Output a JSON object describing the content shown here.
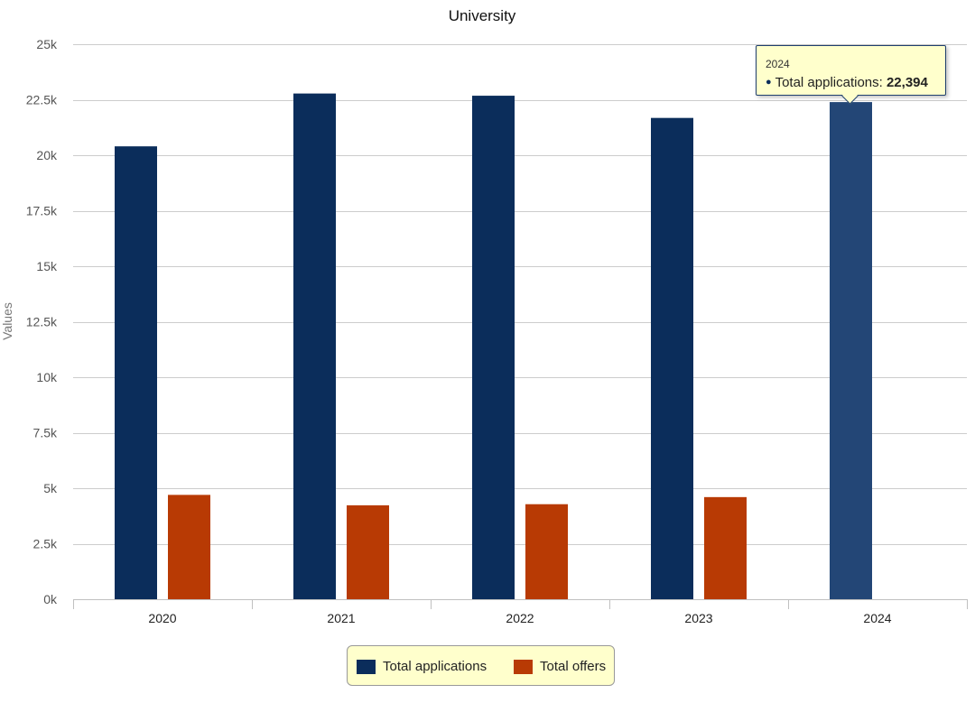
{
  "chart_data": {
    "type": "bar",
    "title": "University",
    "xlabel": "",
    "ylabel": "Values",
    "categories": [
      "2020",
      "2021",
      "2022",
      "2023",
      "2024"
    ],
    "ylim": [
      0,
      25000
    ],
    "yticks": [
      0,
      2500,
      5000,
      7500,
      10000,
      12500,
      15000,
      17500,
      20000,
      22500,
      25000
    ],
    "ytick_labels": [
      "0k",
      "2.5k",
      "5k",
      "7.5k",
      "10k",
      "12.5k",
      "15k",
      "17.5k",
      "20k",
      "22.5k",
      "25k"
    ],
    "grid": true,
    "legend_position": "bottom-center",
    "series": [
      {
        "name": "Total applications",
        "color": "#0b2d5b",
        "hover_color": "#234676",
        "values": [
          20400,
          22780,
          22680,
          21680,
          22394
        ]
      },
      {
        "name": "Total offers",
        "color": "#b83a04",
        "values": [
          4700,
          4230,
          4280,
          4600,
          null
        ]
      }
    ]
  },
  "tooltip": {
    "header": "2024",
    "series_label": "Total applications: ",
    "value": "22,394",
    "bullet": "●"
  },
  "legend": {
    "items": [
      {
        "label": "Total applications",
        "color": "#0b2d5b"
      },
      {
        "label": "Total offers",
        "color": "#b83a04"
      }
    ]
  }
}
